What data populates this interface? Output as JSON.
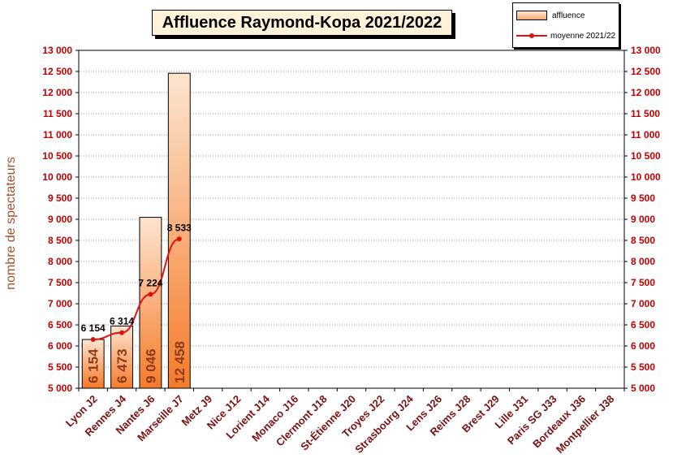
{
  "chart_data": {
    "type": "bar",
    "title": "Affluence Raymond-Kopa 2021/2022",
    "ylabel": "nombre de spectateurs",
    "ylim": [
      5000,
      13000
    ],
    "ytick_step": 500,
    "ytick_labels": [
      "5 000",
      "5 500",
      "6 000",
      "6 500",
      "7 000",
      "7 500",
      "8 000",
      "8 500",
      "9 000",
      "9 500",
      "10 000",
      "10 500",
      "11 000",
      "11 500",
      "12 000",
      "12 500",
      "13 000"
    ],
    "grid": true,
    "legend_placement": "top-right",
    "categories": [
      "Lyon J2",
      "Rennes J4",
      "Nantes J6",
      "Marseille J7",
      "Metz J9",
      "Nice J12",
      "Lorient J14",
      "Monaco J16",
      "Clermont J18",
      "St-Étienne J20",
      "Troyes J22",
      "Strasbourg J24",
      "Lens J26",
      "Reims J28",
      "Brest J29",
      "Lille J31",
      "Paris SG J33",
      "Bordeaux J36",
      "Montpellier J38"
    ],
    "series": [
      {
        "name": "affluence",
        "type": "bar",
        "values": [
          6154,
          6473,
          9046,
          12458,
          null,
          null,
          null,
          null,
          null,
          null,
          null,
          null,
          null,
          null,
          null,
          null,
          null,
          null,
          null
        ],
        "labels": [
          "6 154",
          "6 473",
          "9 046",
          "12 458"
        ],
        "color_top": "#fde5cf",
        "color_bottom": "#f57a2a"
      },
      {
        "name": "moyenne 2021/22",
        "type": "line",
        "values": [
          6154,
          6314,
          7224,
          8533,
          null,
          null,
          null,
          null,
          null,
          null,
          null,
          null,
          null,
          null,
          null,
          null,
          null,
          null,
          null
        ],
        "labels": [
          "6 154",
          "6 314",
          "7 224",
          "8 533"
        ],
        "color": "#e01010"
      }
    ],
    "colors": {
      "tick_label": "#c00000",
      "category_label": "#7a1010",
      "axis_title": "#a0522d",
      "bar_label": "#8b3a1a"
    }
  }
}
